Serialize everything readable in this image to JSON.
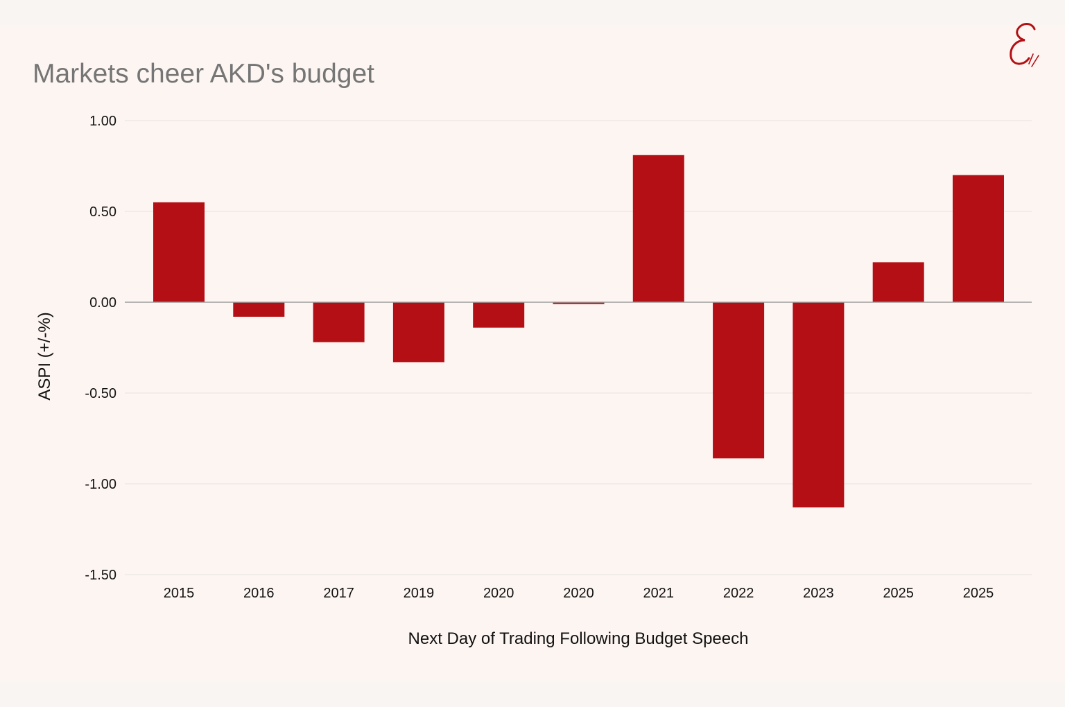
{
  "chart_data": {
    "type": "bar",
    "title": "Markets cheer AKD's budget",
    "xlabel": "Next Day of Trading Following Budget Speech",
    "ylabel": "ASPI (+/-%)",
    "categories": [
      "2015",
      "2016",
      "2017",
      "2019",
      "2020",
      "2020",
      "2021",
      "2022",
      "2023",
      "2025",
      "2025"
    ],
    "values": [
      0.55,
      -0.08,
      -0.22,
      -0.33,
      -0.14,
      -0.01,
      0.81,
      -0.86,
      -1.13,
      0.22,
      0.7
    ],
    "ylim": [
      -1.5,
      1.0
    ],
    "yticks": [
      1.0,
      0.5,
      0.0,
      -0.5,
      -1.0,
      -1.5
    ],
    "ytick_labels": [
      "1.00",
      "0.50",
      "0.00",
      "-0.50",
      "-1.00",
      "-1.50"
    ],
    "grid": true,
    "legend": "none",
    "bar_color": "#b30f14"
  },
  "branding": {
    "logo": "script-e-logo",
    "logo_color": "#b30f14"
  }
}
